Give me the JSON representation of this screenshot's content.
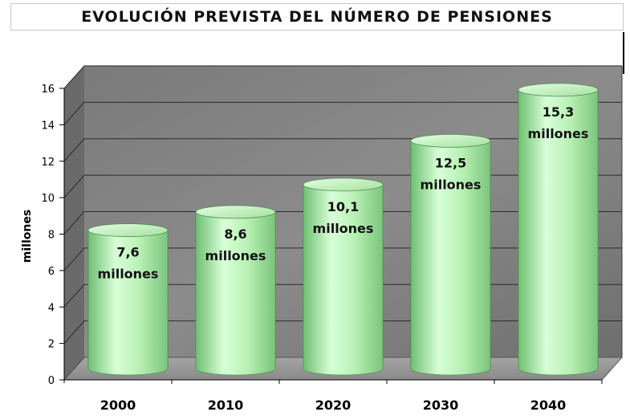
{
  "chart_data": {
    "type": "bar",
    "style": "3d-cylinder",
    "title": "EVOLUCIÓN PREVISTA DEL NÚMERO DE PENSIONES",
    "xlabel": "",
    "ylabel": "millones",
    "categories": [
      "2000",
      "2010",
      "2020",
      "2030",
      "2040"
    ],
    "values": [
      7.6,
      8.6,
      10.1,
      12.5,
      15.3
    ],
    "data_labels": [
      [
        "7,6",
        "millones"
      ],
      [
        "8,6",
        "millones"
      ],
      [
        "10,1",
        "millones"
      ],
      [
        "12,5",
        "millones"
      ],
      [
        "15,3",
        "millones"
      ]
    ],
    "ylim": [
      0,
      16
    ],
    "yticks": [
      "0",
      "2",
      "4",
      "6",
      "8",
      "10",
      "12",
      "14",
      "16"
    ],
    "grid": true,
    "legend": "none",
    "colors": {
      "bar_light": "#d8ffd8",
      "bar_mid": "#a8e6a0",
      "bar_dark": "#6fbf72",
      "bar_top": "#c4f2be",
      "wall": "#8a8a8a",
      "floor": "#9a9a9a",
      "grid": "#2a2a2a"
    }
  }
}
